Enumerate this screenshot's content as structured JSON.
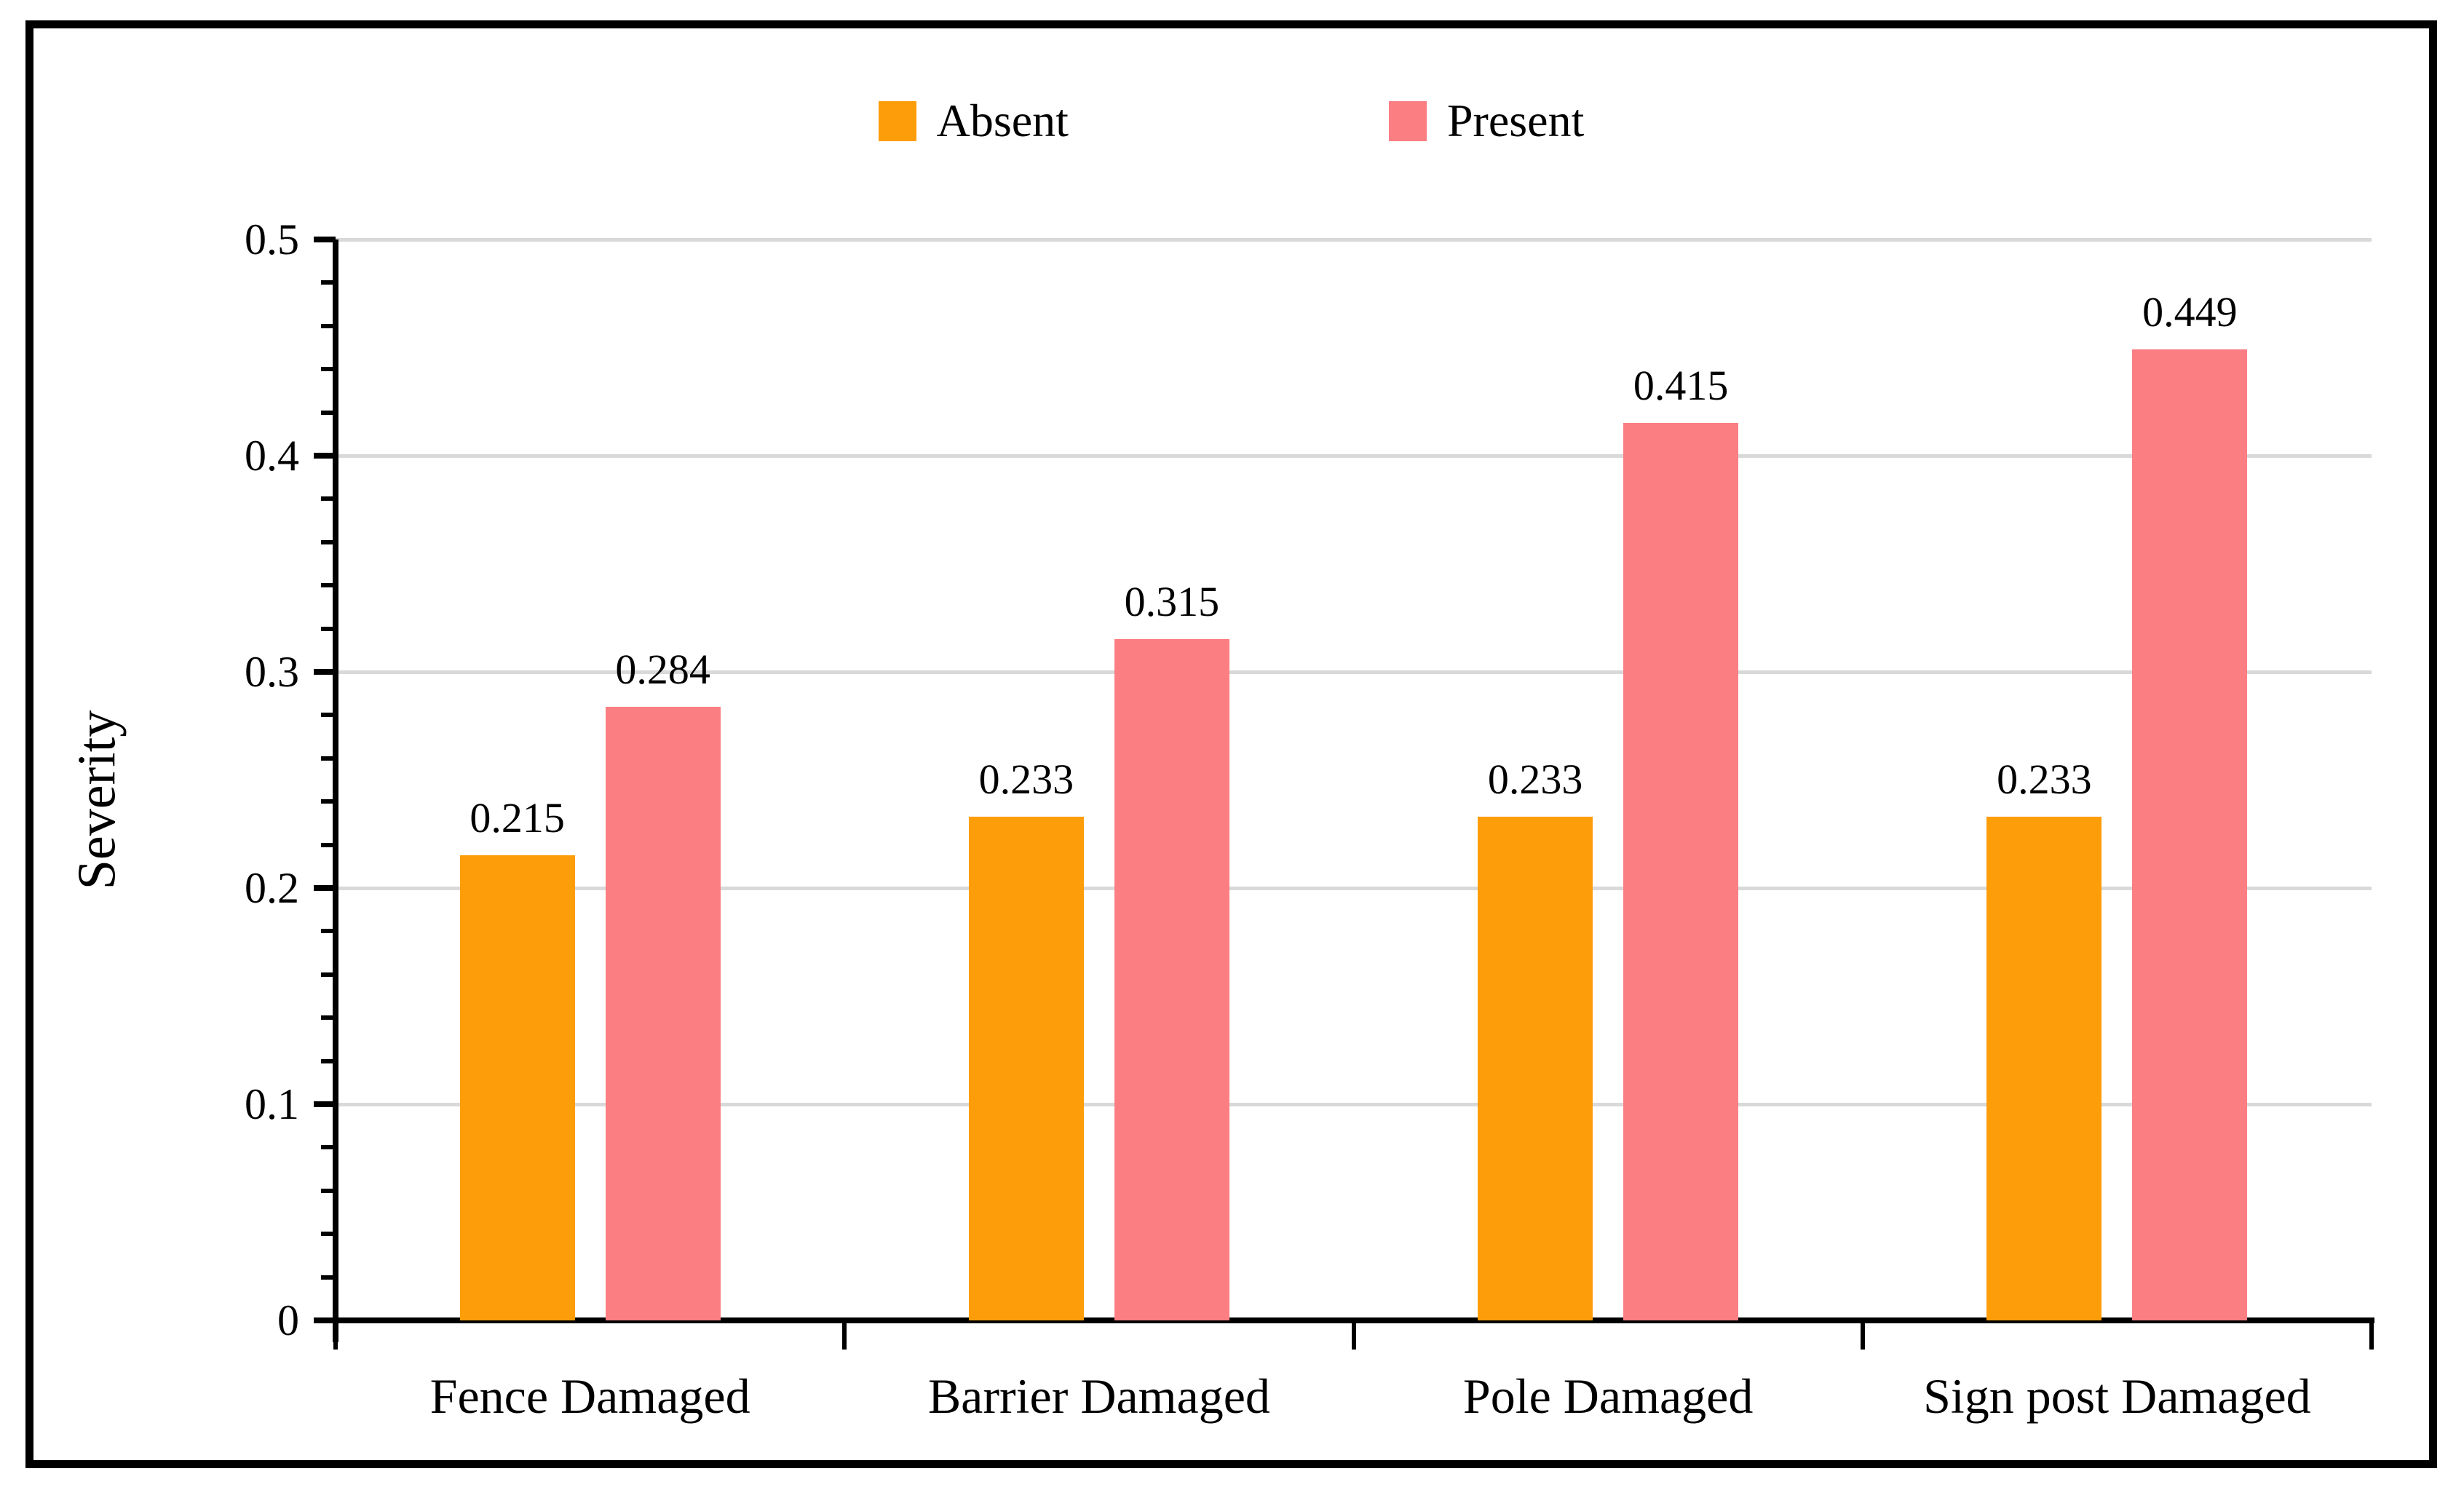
{
  "figure": {
    "background_color": "#FFFFFF",
    "border_color": "#000000"
  },
  "legend": {
    "items": [
      {
        "label": "Absent",
        "color": "#FE9D0A"
      },
      {
        "label": "Present",
        "color": "#FB7E83"
      }
    ]
  },
  "chart_data": {
    "type": "bar",
    "title": "",
    "xlabel": "",
    "ylabel": "Severity",
    "categories": [
      "Fence Damaged",
      "Barrier Damaged",
      "Pole Damaged",
      "Sign post Damaged"
    ],
    "series": [
      {
        "name": "Absent",
        "color": "#FE9D0A",
        "values": [
          0.215,
          0.233,
          0.233,
          0.233
        ]
      },
      {
        "name": "Present",
        "color": "#FB7E83",
        "values": [
          0.284,
          0.315,
          0.415,
          0.449
        ]
      }
    ],
    "data_labels": [
      "0.215",
      "0.284",
      "0.233",
      "0.315",
      "0.233",
      "0.415",
      "0.233",
      "0.449"
    ],
    "ylim": [
      0,
      0.5
    ],
    "yticks": [
      0,
      0.1,
      0.2,
      0.3,
      0.4,
      0.5
    ],
    "ytick_labels": [
      "0",
      "0.1",
      "0.2",
      "0.3",
      "0.4",
      "0.5"
    ],
    "minor_tick_step": 0.02,
    "grid": true,
    "gridline_color": "#D9D9D9",
    "axis_color": "#000000",
    "legend_position": "top-center"
  }
}
